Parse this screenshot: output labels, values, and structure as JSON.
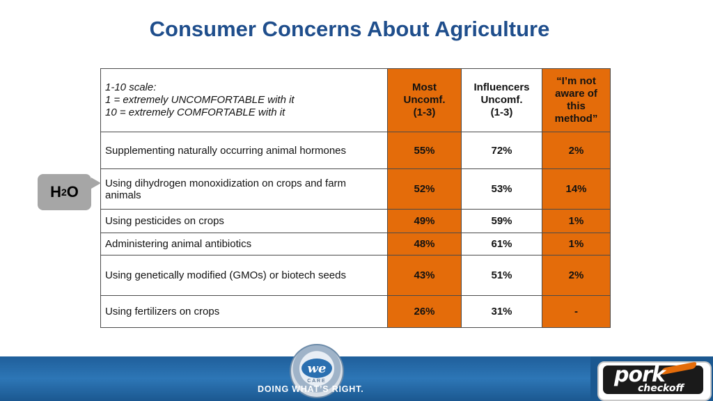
{
  "title": "Consumer Concerns About Agriculture",
  "scale": {
    "line1": "1-10 scale:",
    "line2": "1 = extremely UNCOMFORTABLE with it",
    "line3": "10 = extremely COMFORTABLE with it"
  },
  "headers": {
    "most": [
      "Most",
      "Uncomf.",
      "(1-3)"
    ],
    "influencers": [
      "Influencers",
      "Uncomf.",
      "(1-3)"
    ],
    "not_aware": [
      "“I’m not",
      "aware of",
      "this",
      "method”"
    ]
  },
  "rows": [
    {
      "label": "Supplementing naturally occurring animal hormones",
      "most": "55%",
      "influencers": "72%",
      "not_aware": "2%"
    },
    {
      "label": "Using dihydrogen monoxidization on crops and farm animals",
      "most": "52%",
      "influencers": "53%",
      "not_aware": "14%"
    },
    {
      "label": "Using pesticides on crops",
      "most": "49%",
      "influencers": "59%",
      "not_aware": "1%"
    },
    {
      "label": "Administering animal antibiotics",
      "most": "48%",
      "influencers": "61%",
      "not_aware": "1%"
    },
    {
      "label": "Using genetically modified (GMOs) or biotech seeds",
      "most": "43%",
      "influencers": "51%",
      "not_aware": "2%"
    },
    {
      "label": "Using fertilizers on crops",
      "most": "26%",
      "influencers": "31%",
      "not_aware": "-"
    }
  ],
  "callout": {
    "main": "H",
    "sub": "2",
    "tail": "O"
  },
  "footer": {
    "tagline": "DOING WHAT’S RIGHT.",
    "seal_main": "we",
    "seal_sub": "CARE",
    "brand": "pork",
    "brand_sub": "checkoff"
  },
  "colors": {
    "accent": "#e46c0a",
    "title": "#1f4e8c",
    "footer": "#2d76b6",
    "callout": "#a6a6a6"
  }
}
